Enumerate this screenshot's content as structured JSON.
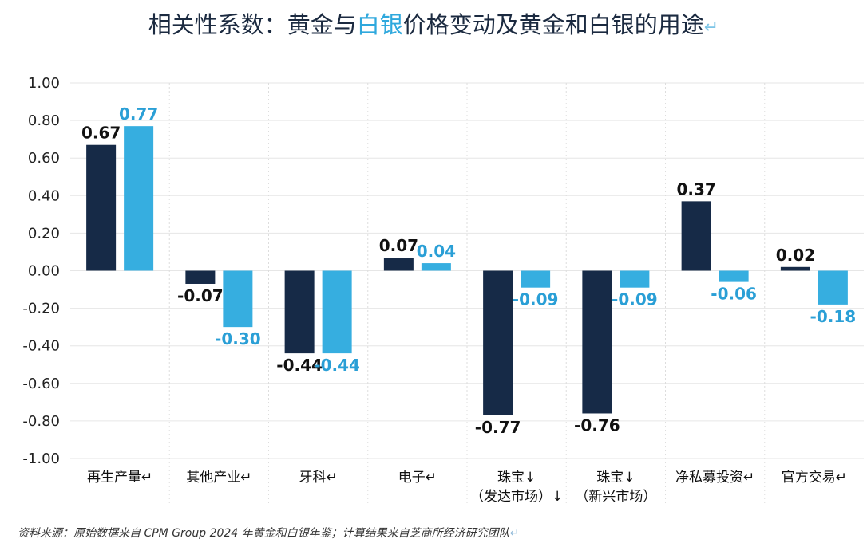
{
  "title": {
    "before": "相关性系数：黄金与",
    "highlight": "白银",
    "after": "价格变动及黄金和白银的用途",
    "mark": "↵"
  },
  "source": {
    "text": "资料来源：原始数据来自 CPM Group 2024 年黄金和白银年鉴；计算结果来自芝商所经济研究团队",
    "mark": "↵"
  },
  "chart_data": {
    "type": "bar",
    "categories": [
      {
        "lines": [
          "再生产量↵"
        ]
      },
      {
        "lines": [
          "其他产业↵"
        ]
      },
      {
        "lines": [
          "牙科↵"
        ]
      },
      {
        "lines": [
          "电子↵"
        ]
      },
      {
        "lines": [
          "珠宝↓",
          "（发达市场）↓"
        ]
      },
      {
        "lines": [
          "珠宝↓",
          "（新兴市场）"
        ]
      },
      {
        "lines": [
          "净私募投资↵"
        ]
      },
      {
        "lines": [
          "官方交易↵"
        ]
      }
    ],
    "series": [
      {
        "color": "#162a47",
        "labelColor": "#111111",
        "values": [
          0.67,
          -0.07,
          -0.44,
          0.07,
          -0.77,
          -0.76,
          0.37,
          0.02
        ],
        "labels": [
          "0.67",
          "-0.07",
          "-0.44",
          "0.07",
          "-0.77",
          "-0.76",
          "0.37",
          "0.02"
        ]
      },
      {
        "color": "#36aee0",
        "labelColor": "#2a9fd6",
        "values": [
          0.77,
          -0.3,
          -0.44,
          0.04,
          -0.09,
          -0.09,
          -0.06,
          -0.18
        ],
        "labels": [
          "0.77",
          "-0.30",
          "-0.44",
          "0.04",
          "-0.09",
          "-0.09",
          "-0.06",
          "-0.18"
        ]
      }
    ],
    "yticks": [
      "1.00",
      "0.80",
      "0.60",
      "0.40",
      "0.20",
      "0.00",
      "-0.20",
      "-0.40",
      "-0.60",
      "-0.80",
      "-1.00"
    ],
    "ylim": [
      -1.0,
      1.0
    ],
    "grid": true
  }
}
